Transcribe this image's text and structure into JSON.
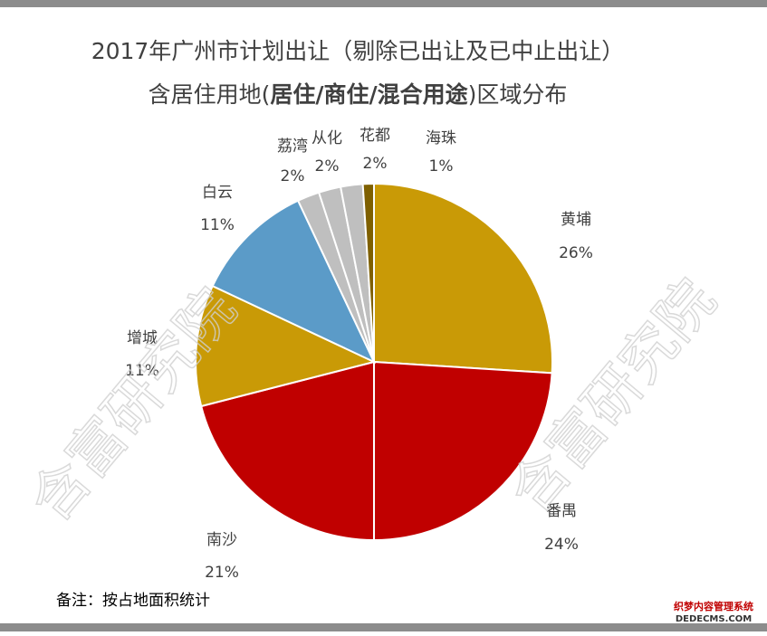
{
  "chart_data": {
    "type": "pie",
    "title": [
      "2017年广州市计划出让（剔除已出让及已中止出让）",
      [
        "含居住用地(",
        "居住/商住/混合用途",
        ")区域分布"
      ]
    ],
    "categories": [
      "黄埔",
      "番禺",
      "南沙",
      "增城",
      "白云",
      "荔湾",
      "从化",
      "花都",
      "海珠"
    ],
    "values": [
      26,
      24,
      21,
      11,
      11,
      2,
      2,
      2,
      1
    ],
    "value_labels": [
      "26%",
      "24%",
      "21%",
      "11%",
      "11%",
      "2%",
      "2%",
      "2%",
      "1%"
    ],
    "colors": [
      "#c99a06",
      "#c00000",
      "#c00000",
      "#c99a06",
      "#5b9bc8",
      "#bfbfbf",
      "#bfbfbf",
      "#bfbfbf",
      "#7f6000"
    ],
    "annotation": "备注：按占地面积统计",
    "watermark": "含富研究院",
    "logo": [
      "织梦内容管理系统",
      "DEDECMS.COM"
    ]
  }
}
